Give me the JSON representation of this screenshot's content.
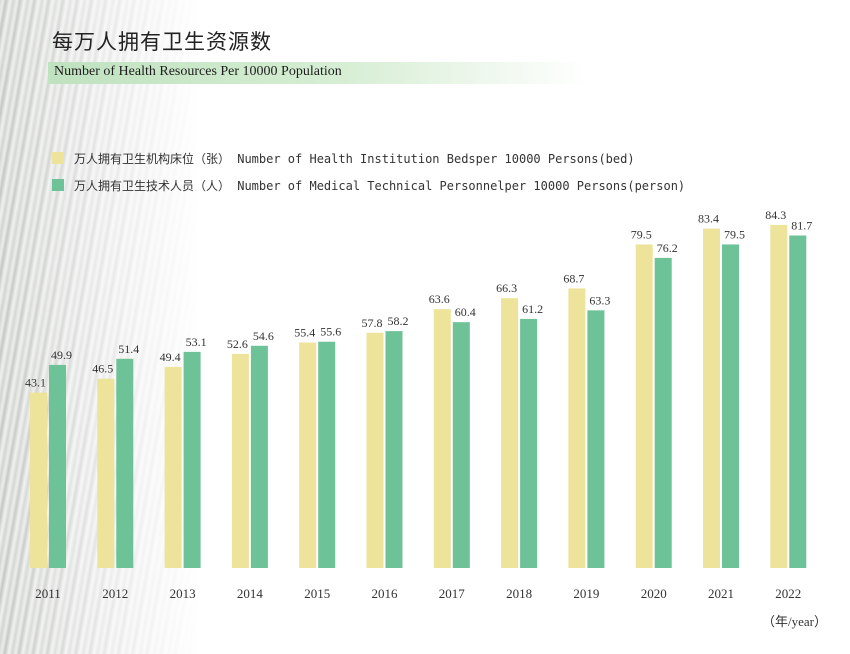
{
  "title": "每万人拥有卫生资源数",
  "subtitle": "Number of Health Resources Per 10000 Population",
  "x_unit": "（年/year）",
  "colors": {
    "beds": "#ede39b",
    "personnel": "#6dc297"
  },
  "chart_data": {
    "type": "bar",
    "categories": [
      "2011",
      "2012",
      "2013",
      "2014",
      "2015",
      "2016",
      "2017",
      "2018",
      "2019",
      "2020",
      "2021",
      "2022"
    ],
    "series": [
      {
        "name": "万人拥有卫生机构床位（张） Number of Health Institution Bedsper 10000 Persons(bed)",
        "values": [
          43.1,
          46.5,
          49.4,
          52.6,
          55.4,
          57.8,
          63.6,
          66.3,
          68.7,
          79.5,
          83.4,
          84.3
        ]
      },
      {
        "name": "万人拥有卫生技术人员（人） Number of Medical Technical Personnelper 10000 Persons(person)",
        "values": [
          49.9,
          51.4,
          53.1,
          54.6,
          55.6,
          58.2,
          60.4,
          61.2,
          63.3,
          76.2,
          79.5,
          81.7
        ]
      }
    ],
    "legend_position": "top-left",
    "grid": false
  }
}
